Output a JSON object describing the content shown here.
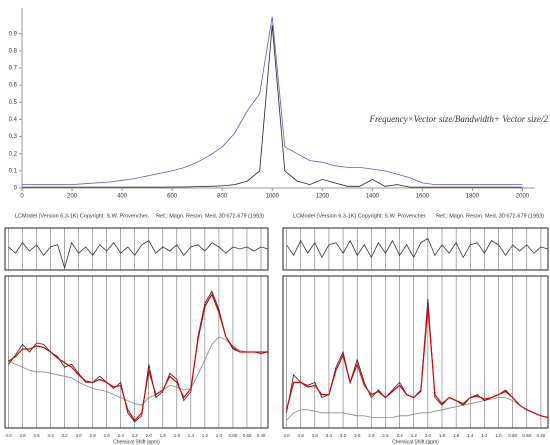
{
  "chart_data": [
    {
      "type": "line",
      "x_label": "Frequency×Vector size/Bandwidth+ Vector size/2",
      "x": [
        0,
        50,
        100,
        150,
        200,
        250,
        300,
        350,
        400,
        450,
        500,
        550,
        600,
        650,
        700,
        750,
        800,
        850,
        900,
        950,
        1000,
        1050,
        1100,
        1150,
        1200,
        1250,
        1300,
        1350,
        1400,
        1450,
        1500,
        1550,
        1600,
        1650,
        1700,
        1750,
        1800,
        1850,
        1900,
        1950,
        2000
      ],
      "xlim": [
        0,
        2050
      ],
      "xticks": [
        0,
        200,
        400,
        600,
        800,
        1000,
        1200,
        1400,
        1600,
        1800,
        2000
      ],
      "ylim": [
        0,
        1.05
      ],
      "yticks": [
        0,
        0.1,
        0.2,
        0.3,
        0.4,
        0.5,
        0.6,
        0.7,
        0.8,
        0.9
      ],
      "series": [
        {
          "color": "#5a5ad6",
          "values": [
            0.02,
            0.02,
            0.02,
            0.02,
            0.02,
            0.025,
            0.03,
            0.035,
            0.045,
            0.055,
            0.07,
            0.085,
            0.1,
            0.12,
            0.15,
            0.19,
            0.24,
            0.32,
            0.45,
            0.55,
            1.0,
            0.24,
            0.2,
            0.16,
            0.15,
            0.13,
            0.12,
            0.12,
            0.11,
            0.1,
            0.08,
            0.06,
            0.03,
            0.02,
            0.02,
            0.02,
            0.02,
            0.02,
            0.02,
            0.02,
            0.02
          ]
        },
        {
          "color": "#222222",
          "values": [
            0.005,
            0.005,
            0.005,
            0.005,
            0.005,
            0.005,
            0.005,
            0.005,
            0.005,
            0.005,
            0.005,
            0.005,
            0.006,
            0.006,
            0.008,
            0.01,
            0.012,
            0.02,
            0.04,
            0.1,
            0.95,
            0.1,
            0.04,
            0.02,
            0.05,
            0.03,
            0.01,
            0.01,
            0.05,
            0.01,
            0.02,
            0.005,
            0.005,
            0.005,
            0.005,
            0.005,
            0.005,
            0.005,
            0.005,
            0.005,
            0.005
          ]
        }
      ]
    },
    {
      "type": "line",
      "title": "LCModel (Version 6.3-1K) Copyright: S.W. Provencher.",
      "reference": "Ref.: Magn. Reson. Med. 30:672-679 (1993)",
      "x_label": "Chemical Shift (ppm)",
      "x": [
        4,
        3.9,
        3.8,
        3.7,
        3.6,
        3.5,
        3.4,
        3.3,
        3.2,
        3.1,
        3,
        2.9,
        2.8,
        2.7,
        2.6,
        2.5,
        2.4,
        2.3,
        2.2,
        2.1,
        2,
        1.9,
        1.8,
        1.7,
        1.6,
        1.5,
        1.4,
        1.3,
        1.2,
        1.1,
        1,
        0.9,
        0.8,
        0.7,
        0.6,
        0.5,
        0.4,
        0.3
      ],
      "xlim": [
        4.05,
        0.3
      ],
      "xticks": [
        {
          "value": 4,
          "label": "4.0"
        },
        3.8,
        3.6,
        3.4,
        3.2,
        {
          "value": 3,
          "label": "3.0"
        },
        2.8,
        2.6,
        2.4,
        2.2,
        {
          "value": 2,
          "label": "2.0"
        },
        1.8,
        1.6,
        1.4,
        1.2,
        {
          "value": 1,
          "label": "1.0"
        },
        {
          "value": 0.8,
          "label": "0.80"
        },
        {
          "value": 0.6,
          "label": "0.60"
        },
        {
          "value": 0.4,
          "label": "0.40"
        }
      ],
      "ylim": [
        0,
        1
      ],
      "y2lim": [
        -1,
        1
      ],
      "series": [
        {
          "color": "#888888",
          "values": [
            0.44,
            0.42,
            0.4,
            0.38,
            0.37,
            0.37,
            0.36,
            0.35,
            0.34,
            0.33,
            0.3,
            0.28,
            0.26,
            0.25,
            0.24,
            0.22,
            0.2,
            0.18,
            0.16,
            0.15,
            0.2,
            0.22,
            0.25,
            0.28,
            0.27,
            0.25,
            0.26,
            0.35,
            0.45,
            0.55,
            0.6,
            0.58,
            0.54,
            0.51,
            0.5,
            0.5,
            0.5,
            0.5
          ]
        },
        {
          "color": "#222222",
          "values": [
            0.42,
            0.48,
            0.55,
            0.5,
            0.56,
            0.55,
            0.5,
            0.47,
            0.4,
            0.42,
            0.36,
            0.3,
            0.3,
            0.34,
            0.3,
            0.26,
            0.3,
            0.1,
            0.04,
            0.08,
            0.42,
            0.2,
            0.24,
            0.36,
            0.32,
            0.18,
            0.24,
            0.6,
            0.82,
            0.9,
            0.78,
            0.6,
            0.52,
            0.5,
            0.5,
            0.5,
            0.49,
            0.5
          ]
        },
        {
          "color": "#e00000",
          "values": [
            0.44,
            0.47,
            0.52,
            0.52,
            0.54,
            0.53,
            0.5,
            0.46,
            0.43,
            0.4,
            0.35,
            0.31,
            0.3,
            0.32,
            0.3,
            0.27,
            0.28,
            0.12,
            0.05,
            0.1,
            0.38,
            0.22,
            0.25,
            0.34,
            0.3,
            0.2,
            0.26,
            0.58,
            0.8,
            0.88,
            0.76,
            0.6,
            0.53,
            0.5,
            0.5,
            0.5,
            0.5,
            0.5
          ]
        },
        {
          "color": "#333333",
          "axis": "y2",
          "values": [
            0.1,
            -0.2,
            0.3,
            -0.1,
            0.2,
            -0.3,
            0.1,
            0.2,
            -0.9,
            0.3,
            -0.2,
            0.1,
            -0.3,
            0.2,
            -0.1,
            0.3,
            -0.2,
            0.1,
            -0.3,
            0.2,
            0.4,
            -0.2,
            0.1,
            -0.1,
            0.2,
            -0.3,
            0.1,
            0.2,
            -0.1,
            0.3,
            0.1,
            -0.2,
            0.1,
            0,
            0.1,
            -0.1,
            0.1,
            0
          ]
        }
      ]
    },
    {
      "type": "line",
      "title": "LCModel (Version 6.3-1K) Copyright: S.W. Provencher.",
      "reference": "Ref.: Magn. Reson. Med. 30:672-679 (1993)",
      "x_label": "Chemical Shift (ppm)",
      "x": [
        4,
        3.9,
        3.8,
        3.7,
        3.6,
        3.5,
        3.4,
        3.3,
        3.2,
        3.1,
        3,
        2.9,
        2.8,
        2.7,
        2.6,
        2.5,
        2.4,
        2.3,
        2.2,
        2.1,
        2,
        1.9,
        1.8,
        1.7,
        1.6,
        1.5,
        1.4,
        1.3,
        1.2,
        1.1,
        1,
        0.9,
        0.8,
        0.7,
        0.6,
        0.5,
        0.4,
        0.3
      ],
      "xlim": [
        4.05,
        0.3
      ],
      "xticks": [
        {
          "value": 4,
          "label": "4.0"
        },
        3.8,
        3.6,
        3.4,
        3.2,
        {
          "value": 3,
          "label": "3.0"
        },
        2.8,
        2.6,
        2.4,
        2.2,
        {
          "value": 2,
          "label": "2.0"
        },
        1.8,
        1.6,
        1.4,
        1.2,
        {
          "value": 1,
          "label": "1.0"
        },
        {
          "value": 0.8,
          "label": "0.80"
        },
        {
          "value": 0.6,
          "label": "0.60"
        },
        {
          "value": 0.4,
          "label": "0.40"
        }
      ],
      "ylim": [
        0,
        1
      ],
      "y2lim": [
        -1,
        1
      ],
      "series": [
        {
          "color": "#888888",
          "values": [
            0.05,
            0.1,
            0.12,
            0.12,
            0.11,
            0.1,
            0.1,
            0.1,
            0.1,
            0.09,
            0.08,
            0.08,
            0.07,
            0.07,
            0.07,
            0.07,
            0.08,
            0.08,
            0.09,
            0.1,
            0.1,
            0.11,
            0.12,
            0.13,
            0.14,
            0.15,
            0.16,
            0.17,
            0.18,
            0.19,
            0.2,
            0.2,
            0.18,
            0.15,
            0.12,
            0.1,
            0.08,
            0.07
          ]
        },
        {
          "color": "#222222",
          "values": [
            0.1,
            0.35,
            0.3,
            0.28,
            0.3,
            0.2,
            0.22,
            0.4,
            0.5,
            0.3,
            0.45,
            0.3,
            0.2,
            0.25,
            0.2,
            0.25,
            0.3,
            0.22,
            0.2,
            0.25,
            0.85,
            0.2,
            0.15,
            0.2,
            0.18,
            0.15,
            0.2,
            0.22,
            0.18,
            0.2,
            0.22,
            0.25,
            0.2,
            0.15,
            0.12,
            0.1,
            0.08,
            0.07
          ]
        },
        {
          "color": "#e00000",
          "values": [
            0.12,
            0.3,
            0.3,
            0.27,
            0.28,
            0.22,
            0.22,
            0.38,
            0.48,
            0.3,
            0.42,
            0.28,
            0.22,
            0.24,
            0.2,
            0.24,
            0.28,
            0.22,
            0.2,
            0.24,
            0.8,
            0.22,
            0.16,
            0.2,
            0.18,
            0.16,
            0.2,
            0.21,
            0.19,
            0.2,
            0.22,
            0.24,
            0.2,
            0.15,
            0.12,
            0.1,
            0.08,
            0.07
          ]
        },
        {
          "color": "#333333",
          "axis": "y2",
          "values": [
            0.2,
            -0.3,
            0.4,
            -0.2,
            0.3,
            -0.4,
            0.2,
            0.3,
            -0.2,
            0.4,
            -0.3,
            0.2,
            -0.4,
            0.3,
            -0.2,
            0.4,
            -0.3,
            0.2,
            -0.4,
            0.3,
            0.5,
            -0.3,
            0.2,
            -0.2,
            0.3,
            -0.4,
            0.2,
            0.3,
            -0.2,
            0.4,
            0.2,
            -0.3,
            0.2,
            -0.1,
            0.2,
            -0.2,
            0.1,
            0
          ]
        }
      ]
    }
  ]
}
